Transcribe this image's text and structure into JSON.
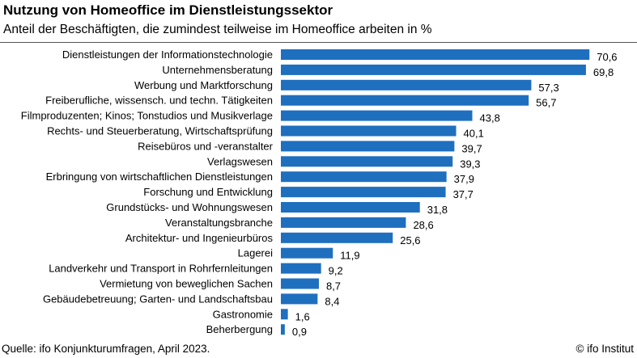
{
  "title": "Nutzung von Homeoffice im Dienstleistungssektor",
  "subtitle": "Anteil der Beschäftigten, die zumindest teilweise im Homeoffice arbeiten in %",
  "source": "Quelle: ifo Konjunkturumfragen, April 2023.",
  "credit": "© ifo Institut",
  "chart_data": {
    "type": "bar",
    "orientation": "horizontal",
    "categories": [
      "Dienstleistungen der Informationstechnologie",
      "Unternehmensberatung",
      "Werbung und Marktforschung",
      "Freiberufliche, wissensch. und techn. Tätigkeiten",
      "Filmproduzenten; Kinos; Tonstudios und Musikverlage",
      "Rechts- und Steuerberatung, Wirtschaftsprüfung",
      "Reisebüros und -veranstalter",
      "Verlagswesen",
      "Erbringung von wirtschaftlichen Dienstleistungen",
      "Forschung und Entwicklung",
      "Grundstücks- und Wohnungswesen",
      "Veranstaltungsbranche",
      "Architektur- und Ingenieurbüros",
      "Lagerei",
      "Landverkehr und Transport in Rohrfernleitungen",
      "Vermietung von beweglichen Sachen",
      "Gebäudebetreuung; Garten- und Landschaftsbau",
      "Gastronomie",
      "Beherbergung"
    ],
    "values": [
      70.6,
      69.8,
      57.3,
      56.7,
      43.8,
      40.1,
      39.7,
      39.3,
      37.9,
      37.7,
      31.8,
      28.6,
      25.6,
      11.9,
      9.2,
      8.7,
      8.4,
      1.6,
      0.9
    ],
    "value_labels": [
      "70,6",
      "69,8",
      "57,3",
      "56,7",
      "43,8",
      "40,1",
      "39,7",
      "39,3",
      "37,9",
      "37,7",
      "31,8",
      "28,6",
      "25,6",
      "11,9",
      "9,2",
      "8,7",
      "8,4",
      "1,6",
      "0,9"
    ],
    "bar_color": "#1f6fbf",
    "grid": false,
    "legend": "none"
  }
}
